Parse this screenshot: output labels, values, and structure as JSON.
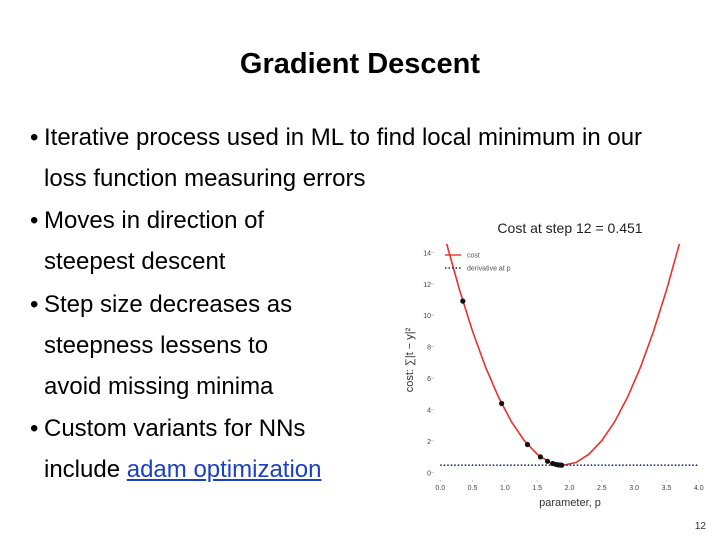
{
  "slide": {
    "title": "Gradient Descent",
    "bullets": [
      {
        "text": "Iterative process used in ML to find local minimum in our loss function measuring errors"
      },
      {
        "text": "Moves in direction of steepest descent"
      },
      {
        "text": "Step size decreases as steepness lessens to avoid missing minima"
      },
      {
        "text": "Custom variants for NNs include",
        "link": "adam optimization"
      }
    ],
    "page_number": "12"
  },
  "chart_data": {
    "type": "line",
    "title": "Cost at step 12 = 0.451",
    "x_label": "parameter, p",
    "y_label": "cost: ∑|t − y|²",
    "xlim": [
      -0.05,
      4.05
    ],
    "ylim": [
      -0.3,
      14.6
    ],
    "xticks": [
      {
        "value": 0,
        "label": "0.0"
      },
      0.5,
      {
        "value": 1,
        "label": "1.0"
      },
      1.5,
      {
        "value": 2,
        "label": "2.0"
      },
      2.5,
      {
        "value": 3,
        "label": "3.0"
      },
      3.5,
      {
        "value": 4,
        "label": "4.0"
      }
    ],
    "yticks": [
      0,
      2,
      4,
      6,
      8,
      10,
      12,
      14
    ],
    "legend": "upper left",
    "series": [
      {
        "name": "cost",
        "color": "#e8322d",
        "style": "solid",
        "x": [
          0.1,
          0.3,
          0.5,
          0.7,
          0.9,
          1.1,
          1.3,
          1.5,
          1.7,
          1.9,
          2.1,
          2.3,
          2.5,
          2.7,
          2.9,
          3.1,
          3.3,
          3.5,
          3.7
        ],
        "values": [
          14.54,
          11.59,
          8.98,
          6.71,
          4.8,
          3.23,
          2.02,
          1.15,
          0.62,
          0.45,
          0.62,
          1.15,
          2.02,
          3.23,
          4.8,
          6.71,
          8.98,
          11.59,
          14.54
        ]
      },
      {
        "name": "derivative at p",
        "color": "#1f2a6b",
        "style": "dotted",
        "x": [
          0,
          4
        ],
        "values": [
          0.45,
          0.45
        ]
      }
    ],
    "points": {
      "color": "#111111",
      "x": [
        0.35,
        0.95,
        1.35,
        1.55,
        1.66,
        1.74,
        1.79,
        1.83,
        1.86,
        1.88
      ],
      "values": [
        10.9,
        4.38,
        1.77,
        0.98,
        0.7,
        0.56,
        0.5,
        0.47,
        0.46,
        0.45
      ]
    }
  }
}
